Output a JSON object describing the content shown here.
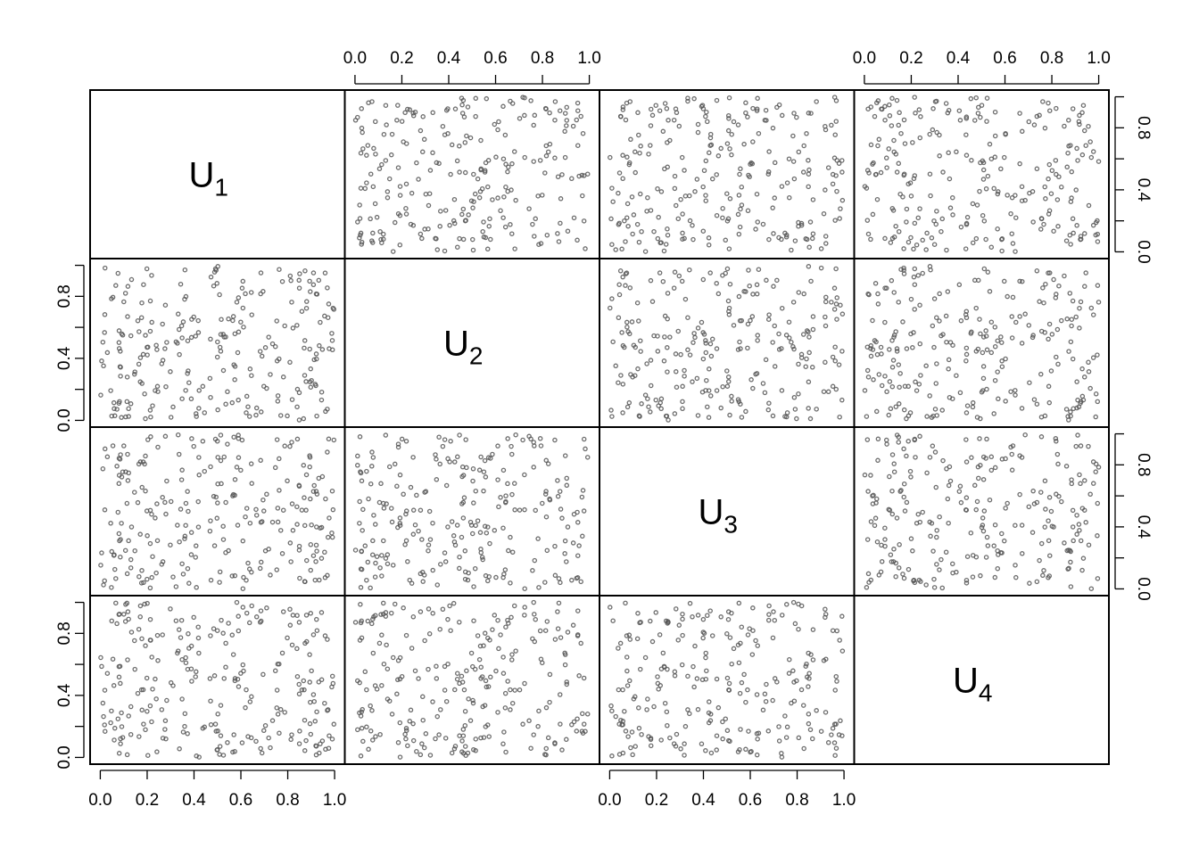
{
  "chart_data": {
    "type": "scatter",
    "layout": "scatterplot-matrix",
    "variables": [
      {
        "name": "U",
        "subscript": "1"
      },
      {
        "name": "U",
        "subscript": "2"
      },
      {
        "name": "U",
        "subscript": "3"
      },
      {
        "name": "U",
        "subscript": "4"
      }
    ],
    "axis_range": [
      0,
      1
    ],
    "tick_values": [
      0.0,
      0.2,
      0.4,
      0.6,
      0.8,
      1.0
    ],
    "tick_labels": [
      "0.0",
      "0.2",
      "0.4",
      "0.6",
      "0.8",
      "1.0"
    ],
    "side_axis_tick_labels": [
      "0.0",
      "0.4",
      "0.8"
    ],
    "n_points_per_panel": 250,
    "distribution": "independent uniform on [0,1]",
    "point_color": "#555555",
    "grid": false
  }
}
